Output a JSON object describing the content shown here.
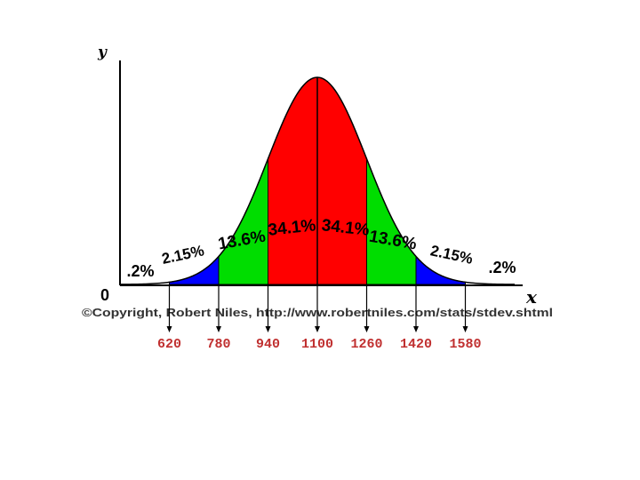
{
  "chart_data": {
    "type": "area",
    "xlabel": "x",
    "ylabel": "y",
    "origin_label": "0",
    "copyright": "©Copyright, Robert Niles, http://www.robertniles.com/stats/stdev.shtml",
    "mean": 1100,
    "std_dev": 160,
    "xlim": [
      460,
      1740
    ],
    "bands": [
      {
        "from": 620,
        "to": 780,
        "label": "2.15%",
        "color": "#0000ff"
      },
      {
        "from": 780,
        "to": 940,
        "label": "13.6%",
        "color": "#00dd00"
      },
      {
        "from": 940,
        "to": 1100,
        "label": "34.1%",
        "color": "#ff0000"
      },
      {
        "from": 1100,
        "to": 1260,
        "label": "34.1%",
        "color": "#ff0000"
      },
      {
        "from": 1260,
        "to": 1420,
        "label": "13.6%",
        "color": "#00dd00"
      },
      {
        "from": 1420,
        "to": 1580,
        "label": "2.15%",
        "color": "#0000ff"
      }
    ],
    "tails": [
      {
        "side": "left",
        "label": ".2%"
      },
      {
        "side": "right",
        "label": ".2%"
      }
    ],
    "markers": [
      {
        "value": 620,
        "label": "620"
      },
      {
        "value": 780,
        "label": "780"
      },
      {
        "value": 940,
        "label": "940"
      },
      {
        "value": 1100,
        "label": "1100"
      },
      {
        "value": 1260,
        "label": "1260"
      },
      {
        "value": 1420,
        "label": "1420"
      },
      {
        "value": 1580,
        "label": "1580"
      }
    ],
    "colors": {
      "curve": "#000000",
      "marker_label": "#c03030"
    }
  }
}
